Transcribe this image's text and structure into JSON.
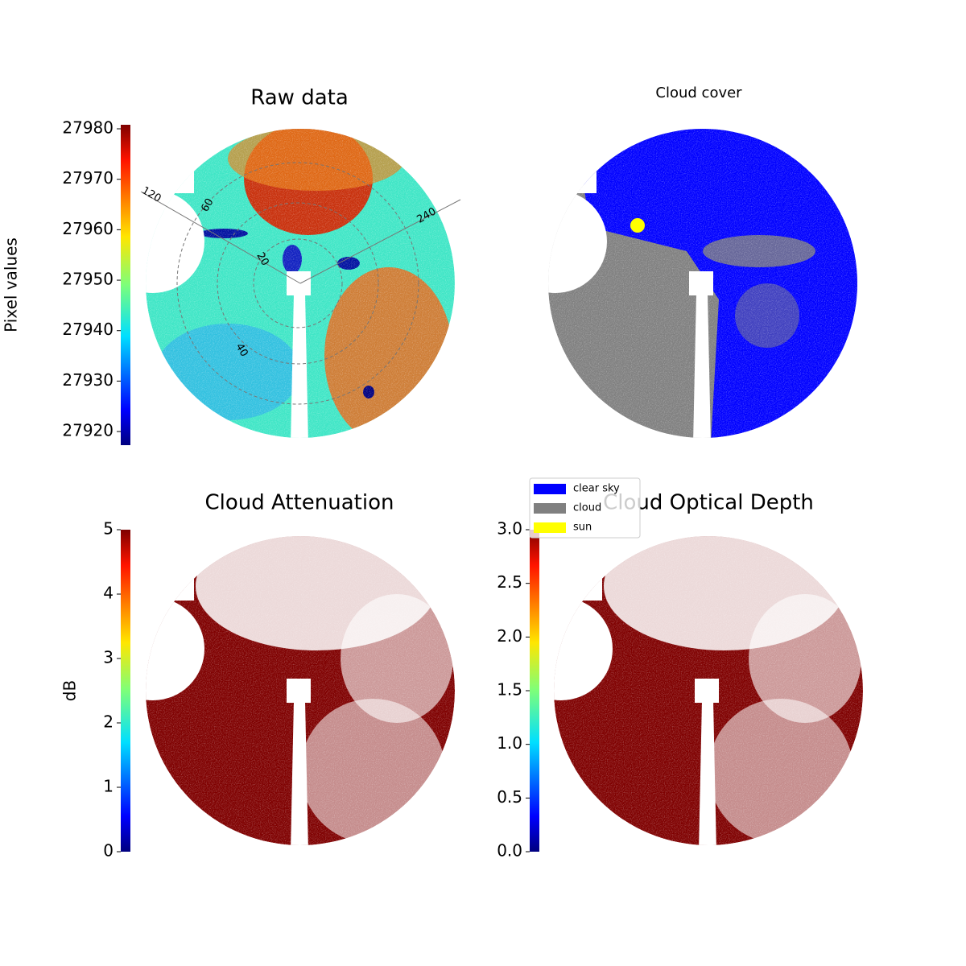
{
  "chart_data": [
    {
      "type": "image",
      "title": "Raw data",
      "colorbar_label": "Pixel values",
      "colormap": "jet",
      "ylim": [
        27917.3,
        27980.8
      ],
      "yticks": [
        27920,
        27930,
        27940,
        27950,
        27960,
        27970,
        27980
      ],
      "polar_labels": [
        "120",
        "240",
        "60",
        "20",
        "40"
      ]
    },
    {
      "type": "classes",
      "title": "Cloud cover",
      "legend": [
        {
          "name": "clear sky",
          "color": "#0000ff"
        },
        {
          "name": "cloud",
          "color": "#808080"
        },
        {
          "name": "sun",
          "color": "#ffff00"
        }
      ]
    },
    {
      "type": "image",
      "title": "Cloud Attenuation",
      "colorbar_label": "dB",
      "colormap": "jet",
      "ylim": [
        0,
        5
      ],
      "yticks": [
        0,
        1,
        2,
        3,
        4,
        5
      ]
    },
    {
      "type": "image",
      "title": "Cloud Optical Depth",
      "colormap": "jet",
      "ylim": [
        0,
        3
      ],
      "yticks": [
        {
          "value": 0,
          "label": "0.0"
        },
        {
          "value": 0.5,
          "label": "0.5"
        },
        {
          "value": 1,
          "label": "1.0"
        },
        {
          "value": 1.5,
          "label": "1.5"
        },
        {
          "value": 2,
          "label": "2.0"
        },
        {
          "value": 2.5,
          "label": "2.5"
        },
        {
          "value": 3,
          "label": "3.0"
        }
      ]
    }
  ]
}
